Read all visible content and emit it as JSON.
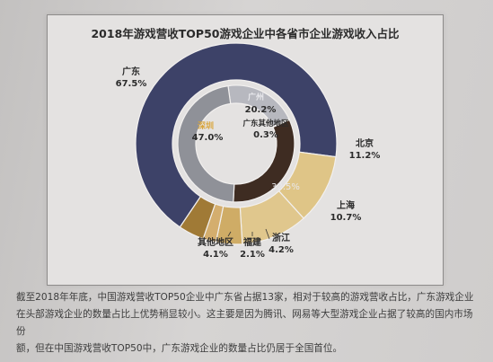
{
  "colors": {
    "guangdong": "#3d4268",
    "beijing": "#dfc587",
    "shanghai": "#e0c78d",
    "zhejiang": "#cfac66",
    "fujian": "#d4ae6e",
    "others": "#a07a36",
    "shenzhen": "#8f9198",
    "guangzhou": "#b7b8bf",
    "gd_others": "#c9cad0",
    "non_guangdong_inner": "#3e2c22"
  },
  "chart_data": {
    "type": "donut",
    "title": "2018年游戏营收TOP50游戏企业中各省市企业游戏收入占比",
    "outer_ring": [
      {
        "label": "广东",
        "value": 67.5,
        "display": "67.5%",
        "color_key": "guangdong"
      },
      {
        "label": "北京",
        "value": 11.2,
        "display": "11.2%",
        "color_key": "beijing"
      },
      {
        "label": "上海",
        "value": 10.7,
        "display": "10.7%",
        "color_key": "shanghai"
      },
      {
        "label": "浙江",
        "value": 4.2,
        "display": "4.2%",
        "color_key": "zhejiang"
      },
      {
        "label": "福建",
        "value": 2.1,
        "display": "2.1%",
        "color_key": "fujian"
      },
      {
        "label": "其他地区",
        "value": 4.1,
        "display": "4.1%",
        "color_key": "others"
      }
    ],
    "inner_ring": [
      {
        "label": "广州",
        "value": 20.2,
        "display": "20.2%",
        "color_key": "guangzhou"
      },
      {
        "label": "广东其他地区",
        "value": 0.3,
        "display": "0.3%",
        "color_key": "gd_others"
      },
      {
        "label": "",
        "value": 32.5,
        "display": "32.5%",
        "color_key": "non_guangdong_inner"
      },
      {
        "label": "深圳",
        "value": 47.0,
        "display": "47.0%",
        "color_key": "shenzhen"
      }
    ]
  },
  "caption": {
    "line1": "截至2018年年底，中国游戏营收TOP50企业中广东省占据13家，相对于较高的游戏营收占比，广东游戏企业",
    "line2": "在头部游戏企业的数量占比上优势稍显较小。这主要是因为腾讯、网易等大型游戏企业占据了较高的国内市场份",
    "line3": "额，但在中国游戏营收TOP50中，广东游戏企业的数量占比仍居于全国首位。"
  }
}
